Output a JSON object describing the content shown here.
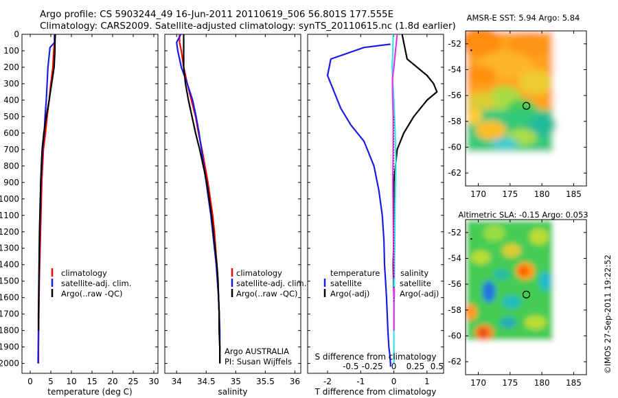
{
  "figure": {
    "title_line1": "Argo profile: CS 5903244_49 16-Jun-2011 20110619_506 56.801S 177.555E",
    "title_line2": "Climatology: CARS2009. Satellite-adjusted climatology: synTS_20110615.nc (1.8d earlier)",
    "timestamp": "©IMOS 27-Sep-2011 19:22:52",
    "colors": {
      "red": "#ff0000",
      "blue": "#1a1ae6",
      "black": "#000000",
      "cyan": "#33e6e6",
      "magenta": "#e633e6"
    }
  },
  "legend_main": [
    "climatology",
    "satellite-adj. clim.",
    "Argo(..raw -QC)"
  ],
  "legend_diff": {
    "temp_header": "temperature",
    "sal_header": "salinity",
    "temp_items": [
      "satellite",
      "Argo(-adj)"
    ],
    "sal_items": [
      "satellite",
      "Argo(-adj)"
    ]
  },
  "argo_note": [
    "Argo AUSTRALIA",
    "PI: Susan Wijffels"
  ],
  "chart_data": [
    {
      "type": "line",
      "xlabel": "temperature (deg C)",
      "ylabel": "",
      "xlim": [
        -2,
        31
      ],
      "ylim": [
        2060,
        0
      ],
      "xticks": [
        "0",
        "5",
        "10",
        "15",
        "20",
        "25",
        "30"
      ],
      "yticks": [
        "0",
        "100",
        "200",
        "300",
        "400",
        "500",
        "600",
        "700",
        "800",
        "900",
        "1000",
        "1100",
        "1200",
        "1300",
        "1400",
        "1500",
        "1600",
        "1700",
        "1800",
        "1900",
        "2000"
      ],
      "series": [
        {
          "name": "climatology",
          "color": "red",
          "x": [
            5.9,
            5.9,
            5.7,
            5.5,
            5.0,
            4.6,
            4.1,
            3.7,
            3.2,
            3.0,
            2.8,
            2.7,
            2.6,
            2.5,
            2.4,
            2.3,
            2.2,
            2.15,
            2.1,
            2.05,
            2.0,
            2.0
          ],
          "y": [
            0,
            50,
            100,
            200,
            300,
            400,
            500,
            600,
            700,
            800,
            900,
            1000,
            1100,
            1200,
            1300,
            1400,
            1500,
            1600,
            1700,
            1800,
            1900,
            2000
          ]
        },
        {
          "name": "satellite-adj. clim.",
          "color": "blue",
          "x": [
            5.9,
            5.9,
            4.8,
            4.3,
            4.1,
            3.9,
            3.6,
            3.4,
            3.0,
            2.8,
            2.6,
            2.5,
            2.4,
            2.3,
            2.25,
            2.2,
            2.15,
            2.1,
            2.05,
            2.0,
            1.95,
            1.9
          ],
          "y": [
            0,
            50,
            80,
            200,
            300,
            400,
            500,
            600,
            700,
            800,
            900,
            1000,
            1100,
            1200,
            1300,
            1400,
            1500,
            1600,
            1700,
            1800,
            1900,
            2000
          ]
        },
        {
          "name": "Argo(..raw -QC)",
          "color": "black",
          "x": [
            6.1,
            6.0,
            6.0,
            5.8,
            5.2,
            4.6,
            3.9,
            3.3,
            2.9,
            2.7,
            2.55,
            2.45,
            2.35,
            2.25,
            2.2,
            2.15,
            2.1,
            2.05,
            2.0,
            2.0
          ],
          "y": [
            0,
            50,
            100,
            200,
            300,
            400,
            500,
            600,
            700,
            800,
            900,
            1000,
            1100,
            1200,
            1300,
            1400,
            1500,
            1600,
            1700,
            1800
          ]
        }
      ]
    },
    {
      "type": "line",
      "xlabel": "salinity",
      "ylabel": "",
      "xlim": [
        33.8,
        36.1
      ],
      "ylim": [
        2060,
        0
      ],
      "xticks": [
        "34",
        "34.5",
        "35",
        "35.5",
        "36"
      ],
      "series": [
        {
          "name": "climatology",
          "color": "red",
          "x": [
            34.05,
            34.05,
            34.08,
            34.12,
            34.18,
            34.25,
            34.32,
            34.37,
            34.43,
            34.48,
            34.53,
            34.57,
            34.61,
            34.64,
            34.66,
            34.68,
            34.7,
            34.71,
            34.72,
            34.72,
            34.73,
            34.73
          ],
          "y": [
            0,
            50,
            100,
            200,
            300,
            400,
            500,
            600,
            700,
            800,
            900,
            1000,
            1100,
            1200,
            1300,
            1400,
            1500,
            1600,
            1700,
            1800,
            1900,
            2000
          ]
        },
        {
          "name": "satellite-adj. clim.",
          "color": "blue",
          "x": [
            34.07,
            34.0,
            34.02,
            34.08,
            34.18,
            34.27,
            34.33,
            34.38,
            34.42,
            34.46,
            34.5,
            34.54,
            34.58,
            34.61,
            34.64,
            34.67,
            34.69,
            34.71,
            34.72,
            34.73,
            34.73,
            34.73
          ],
          "y": [
            0,
            50,
            100,
            200,
            300,
            400,
            500,
            600,
            700,
            800,
            900,
            1000,
            1100,
            1200,
            1300,
            1400,
            1500,
            1600,
            1700,
            1800,
            1900,
            2000
          ]
        },
        {
          "name": "Argo(..raw -QC)",
          "color": "black",
          "x": [
            34.12,
            34.12,
            34.12,
            34.12,
            34.15,
            34.2,
            34.26,
            34.32,
            34.39,
            34.45,
            34.51,
            34.55,
            34.59,
            34.62,
            34.65,
            34.68,
            34.7,
            34.71,
            34.72,
            34.72,
            34.73,
            34.73
          ],
          "y": [
            0,
            50,
            100,
            200,
            300,
            400,
            500,
            600,
            700,
            800,
            900,
            1000,
            1100,
            1200,
            1300,
            1400,
            1500,
            1600,
            1700,
            1800,
            1900,
            2000
          ]
        }
      ]
    },
    {
      "type": "line",
      "xlabel": "T difference from climatology",
      "xlabel_top": "S difference from climatology",
      "ylabel": "",
      "xlim": [
        -2.6,
        1.5
      ],
      "ylim": [
        2060,
        0
      ],
      "xticks": [
        "-2",
        "-1",
        "0",
        "1"
      ],
      "xticks_top": [
        "-0.5",
        "-0.25",
        "0",
        "0.25",
        "0.5"
      ],
      "series": [
        {
          "name": "temperature satellite",
          "color": "blue",
          "x": [
            -0.1,
            -0.9,
            -1.9,
            -2.0,
            -1.8,
            -1.6,
            -1.3,
            -0.9,
            -0.6,
            -0.45,
            -0.35,
            -0.3,
            -0.28,
            -0.25,
            -0.22,
            -0.2,
            -0.18,
            -0.15,
            -0.12,
            -0.1,
            -0.1
          ],
          "y": [
            60,
            80,
            150,
            250,
            350,
            450,
            550,
            650,
            800,
            950,
            1100,
            1250,
            1400,
            1500,
            1600,
            1700,
            1800,
            1900,
            1950,
            2000,
            2020
          ]
        },
        {
          "name": "temperature Argo(-adj)",
          "color": "black",
          "x": [
            0.25,
            0.3,
            0.4,
            1.0,
            1.2,
            1.3,
            1.0,
            0.6,
            0.3,
            0.1,
            0.05,
            0.0,
            0.0,
            0.0,
            -0.02,
            0.0,
            0.0,
            0.0
          ],
          "y": [
            0,
            50,
            150,
            250,
            300,
            350,
            400,
            500,
            600,
            700,
            800,
            900,
            1000,
            1200,
            1400,
            1600,
            1700,
            1800
          ]
        },
        {
          "name": "salinity satellite",
          "color": "cyan",
          "x": [
            -0.02,
            -0.03,
            -0.05,
            -0.03,
            0.0,
            0.02,
            0.04,
            0.05,
            0.06,
            0.05,
            0.04,
            0.03,
            0.02,
            0.01,
            0.0,
            0.0,
            0.0
          ],
          "y": [
            0,
            100,
            200,
            300,
            400,
            500,
            600,
            700,
            800,
            900,
            1000,
            1200,
            1400,
            1600,
            1800,
            1900,
            2000
          ]
        },
        {
          "name": "salinity Argo(-adj)",
          "color": "magenta",
          "x": [
            0.1,
            0.05,
            0.0,
            -0.04,
            -0.04,
            -0.02,
            -0.02,
            -0.03,
            -0.02,
            -0.01,
            0.0,
            0.0,
            0.0
          ],
          "y": [
            0,
            100,
            200,
            270,
            350,
            500,
            700,
            900,
            1100,
            1300,
            1500,
            1700,
            1800
          ]
        }
      ]
    },
    {
      "type": "heatmap",
      "title": "AMSR-E SST: 5.94 Argo: 5.84",
      "xlim": [
        168,
        187
      ],
      "ylim": [
        -63,
        -51
      ],
      "xticks": [
        "170",
        "175",
        "180",
        "185"
      ],
      "yticks": [
        "-52",
        "-54",
        "-56",
        "-58",
        "-60",
        "-62"
      ],
      "data_extent": {
        "lon": [
          168.5,
          180.5
        ],
        "lat": [
          -60.2,
          -50.5
        ]
      },
      "argo_position": {
        "lon": 177.555,
        "lat": -56.801
      }
    },
    {
      "type": "heatmap",
      "title": "Altimetric SLA: -0.15 Argo: 0.053",
      "xlim": [
        168,
        187
      ],
      "ylim": [
        -63,
        -51
      ],
      "xticks": [
        "170",
        "175",
        "180",
        "185"
      ],
      "yticks": [
        "-52",
        "-54",
        "-56",
        "-58",
        "-60",
        "-62"
      ],
      "data_extent": {
        "lon": [
          168.5,
          180.5
        ],
        "lat": [
          -60.2,
          -50.5
        ]
      },
      "argo_position": {
        "lon": 177.555,
        "lat": -56.801
      }
    }
  ]
}
